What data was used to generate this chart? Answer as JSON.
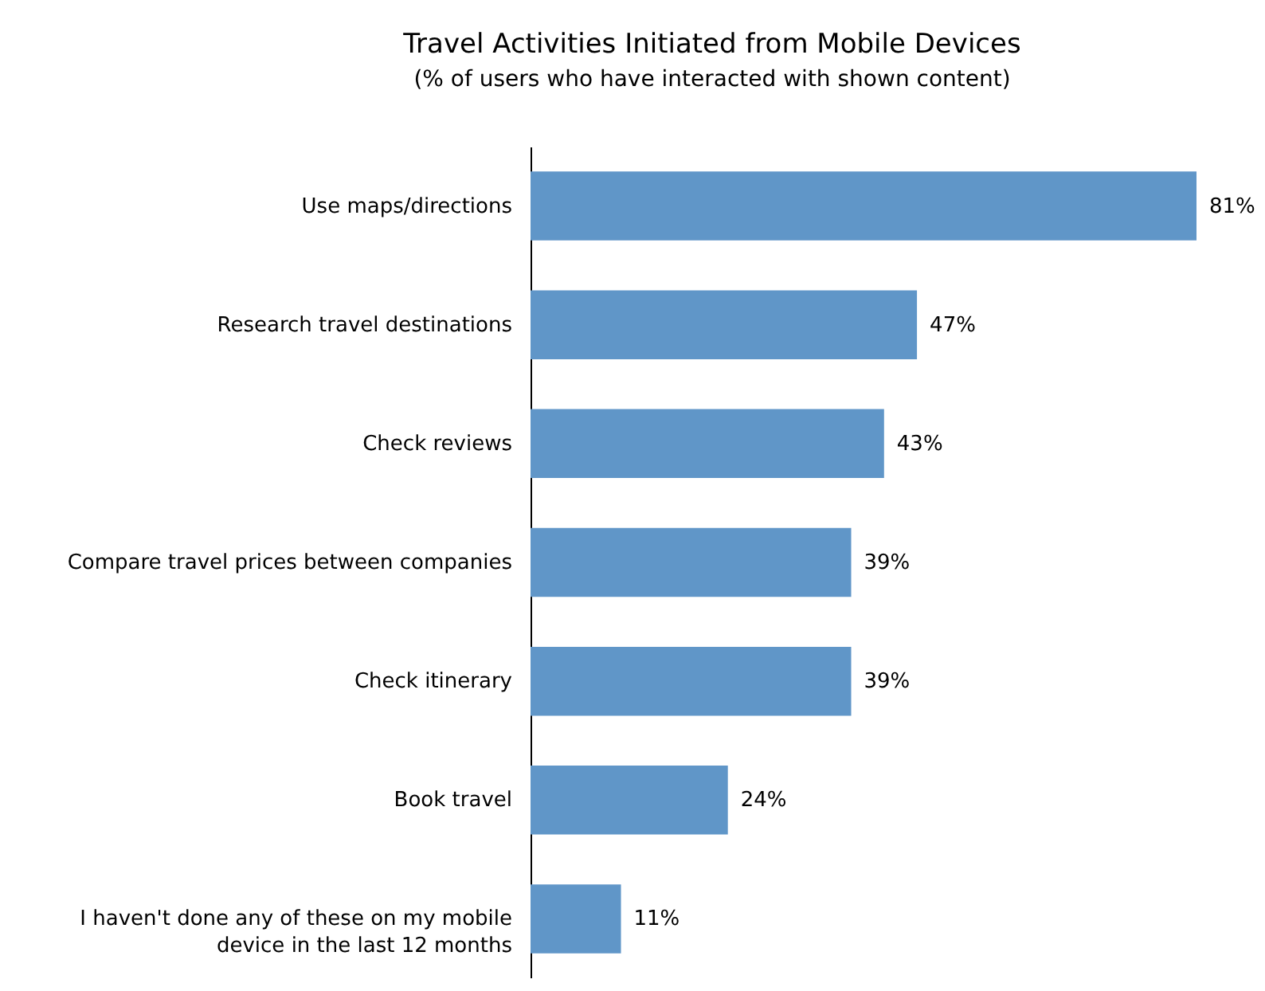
{
  "chart_data": {
    "type": "bar",
    "orientation": "horizontal",
    "title": "Travel Activities Initiated from Mobile Devices",
    "subtitle": "(% of users who have interacted with shown content)",
    "categories": [
      "Use maps/directions",
      "Research travel destinations",
      "Check reviews",
      "Compare travel prices between companies",
      "Check itinerary",
      "Book travel",
      "I haven't done any of these on my mobile device in the last 12 months"
    ],
    "values": [
      81,
      47,
      43,
      39,
      39,
      24,
      11
    ],
    "value_labels": [
      "81%",
      "47%",
      "43%",
      "39%",
      "39%",
      "24%",
      "11%"
    ],
    "color": "#6096c8"
  }
}
